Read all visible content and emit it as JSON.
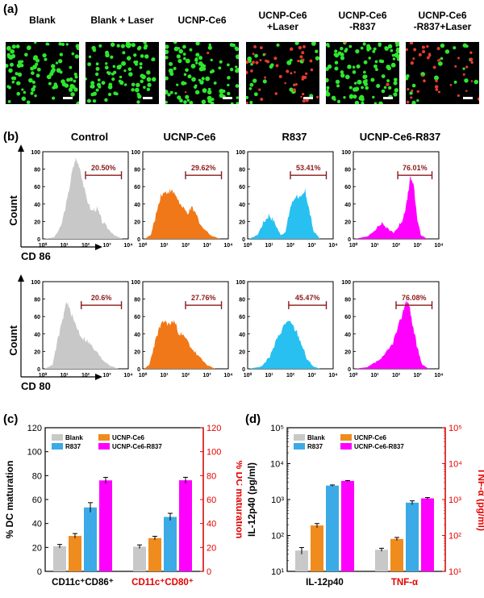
{
  "panel_a": {
    "label": "(a)",
    "images": [
      {
        "title": "Blank",
        "green": 90,
        "red": 0
      },
      {
        "title": "Blank + Laser",
        "green": 90,
        "red": 0
      },
      {
        "title": "UCNP-Ce6",
        "green": 95,
        "red": 2
      },
      {
        "title": "UCNP-Ce6\n+Laser",
        "green": 25,
        "red": 45
      },
      {
        "title": "UCNP-Ce6\n-R837",
        "green": 110,
        "red": 2
      },
      {
        "title": "UCNP-Ce6\n-R837+Laser",
        "green": 20,
        "red": 40
      }
    ],
    "colors": {
      "green": "#2ee62e",
      "red": "#e63a2e",
      "background": "#000000"
    }
  },
  "panel_b": {
    "label": "(b)",
    "column_titles": [
      "Control",
      "UCNP-Ce6",
      "R837",
      "UCNP-Ce6-R837"
    ],
    "y_axis_label": "Count",
    "rows": [
      {
        "marker": "CD 86",
        "percentages": [
          "20.50%",
          "29.62%",
          "53.41%",
          "76.01%"
        ]
      },
      {
        "marker": "CD 80",
        "percentages": [
          "20.6%",
          "27.76%",
          "45.47%",
          "76.08%"
        ]
      }
    ],
    "colors": [
      "#c8c8c8",
      "#f07818",
      "#28c0f0",
      "#ff00ff"
    ],
    "gate_color": "#8b1a1a",
    "y_ticks": [
      "0",
      "20",
      "40",
      "60",
      "80",
      "100"
    ],
    "x_ticks": [
      "10⁰",
      "10¹",
      "10²",
      "10³",
      "10⁴"
    ]
  },
  "chart_data": [
    {
      "panel": "(c)",
      "type": "bar",
      "categories": [
        "CD11c⁺CD86⁺",
        "CD11c⁺CD80⁺"
      ],
      "series": [
        {
          "name": "Blank",
          "values": [
            21,
            20.6
          ],
          "errors": [
            1.5,
            1.5
          ]
        },
        {
          "name": "UCNP-Ce6",
          "values": [
            29.6,
            27.8
          ],
          "errors": [
            2,
            1.5
          ]
        },
        {
          "name": "R837",
          "values": [
            53.4,
            45.5
          ],
          "errors": [
            4,
            3
          ]
        },
        {
          "name": "UCNP-Ce6-R837",
          "values": [
            76,
            76.1
          ],
          "errors": [
            2.5,
            2.5
          ]
        }
      ],
      "ylabel": "% DC maturation",
      "ylabel_right": "% DC maturation",
      "ylim": [
        0,
        120
      ],
      "yticks": [
        0,
        20,
        40,
        60,
        80,
        100,
        120
      ],
      "legend": "top-left",
      "colors": {
        "Blank": "#c8c8c8",
        "UCNP-Ce6": "#f08c1e",
        "R837": "#3caae6",
        "UCNP-Ce6-R837": "#ff00ff"
      },
      "right_axis_color": "#e60000"
    },
    {
      "panel": "(d)",
      "type": "bar",
      "scale": "log",
      "categories": [
        "IL-12p40",
        "TNF-α"
      ],
      "series": [
        {
          "name": "Blank",
          "values": [
            38,
            40
          ],
          "errors": [
            8,
            4
          ]
        },
        {
          "name": "UCNP-Ce6",
          "values": [
            190,
            80
          ],
          "errors": [
            25,
            8
          ]
        },
        {
          "name": "R837",
          "values": [
            2450,
            820
          ],
          "errors": [
            100,
            100
          ]
        },
        {
          "name": "UCNP-Ce6-R837",
          "values": [
            3300,
            1080
          ],
          "errors": [
            80,
            60
          ]
        }
      ],
      "ylabel": "IL-12p40 (pg/ml)",
      "ylabel_right": "TNF-α (pg/ml)",
      "ylim": [
        10,
        100000
      ],
      "yticks": [
        "10¹",
        "10²",
        "10³",
        "10⁴",
        "10⁵"
      ],
      "legend": "top-left",
      "colors": {
        "Blank": "#c8c8c8",
        "UCNP-Ce6": "#f08c1e",
        "R837": "#3caae6",
        "UCNP-Ce6-R837": "#ff00ff"
      },
      "right_axis_color": "#e60000"
    }
  ]
}
